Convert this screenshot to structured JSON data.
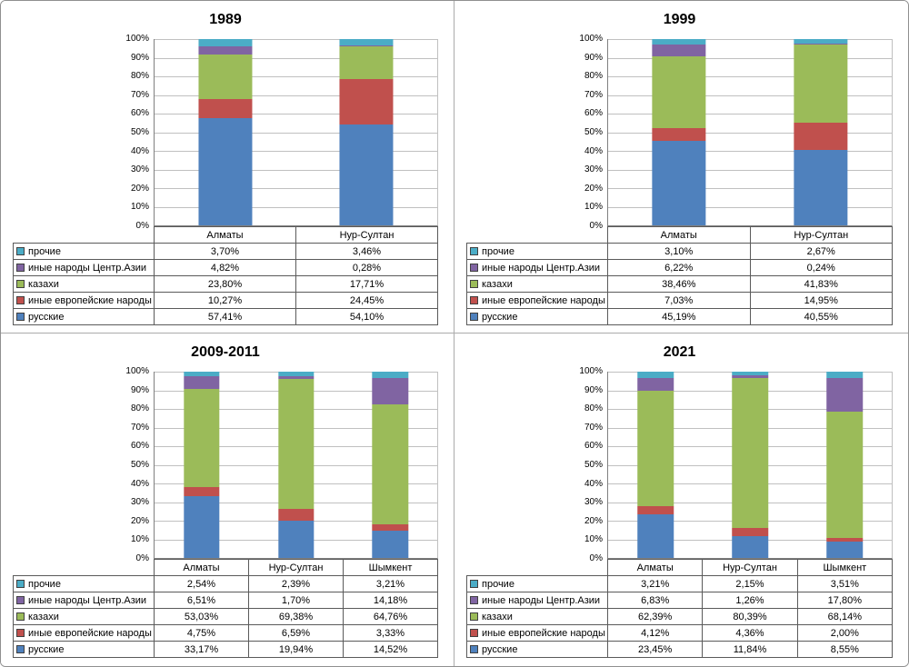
{
  "y_axis_ticks": [
    "100%",
    "90%",
    "80%",
    "70%",
    "60%",
    "50%",
    "40%",
    "30%",
    "20%",
    "10%",
    "0%"
  ],
  "palette": {
    "prochie": "#4BACC6",
    "central_asia": "#8064A2",
    "kazakhi": "#9BBB59",
    "european": "#C0504D",
    "russkie": "#4F81BD"
  },
  "chart_data": [
    {
      "type": "bar",
      "stacked": true,
      "percent": true,
      "grid": true,
      "legend_position": "table-left",
      "title": "1989",
      "categories": [
        "Алматы",
        "Нур-Султан"
      ],
      "ylim": [
        0,
        100
      ],
      "series": [
        {
          "name": "прочие",
          "color": "#4BACC6",
          "values": [
            3.7,
            3.46
          ],
          "labels": [
            "3,70%",
            "3,46%"
          ]
        },
        {
          "name": "иные народы Центр.Азии",
          "color": "#8064A2",
          "values": [
            4.82,
            0.28
          ],
          "labels": [
            "4,82%",
            "0,28%"
          ]
        },
        {
          "name": "казахи",
          "color": "#9BBB59",
          "values": [
            23.8,
            17.71
          ],
          "labels": [
            "23,80%",
            "17,71%"
          ]
        },
        {
          "name": "иные европейские народы",
          "color": "#C0504D",
          "values": [
            10.27,
            24.45
          ],
          "labels": [
            "10,27%",
            "24,45%"
          ]
        },
        {
          "name": "русские",
          "color": "#4F81BD",
          "values": [
            57.41,
            54.1
          ],
          "labels": [
            "57,41%",
            "54,10%"
          ]
        }
      ]
    },
    {
      "type": "bar",
      "stacked": true,
      "percent": true,
      "grid": true,
      "legend_position": "table-left",
      "title": "1999",
      "categories": [
        "Алматы",
        "Нур-Султан"
      ],
      "ylim": [
        0,
        100
      ],
      "series": [
        {
          "name": "прочие",
          "color": "#4BACC6",
          "values": [
            3.1,
            2.67
          ],
          "labels": [
            "3,10%",
            "2,67%"
          ]
        },
        {
          "name": "иные народы Центр.Азии",
          "color": "#8064A2",
          "values": [
            6.22,
            0.24
          ],
          "labels": [
            "6,22%",
            "0,24%"
          ]
        },
        {
          "name": "казахи",
          "color": "#9BBB59",
          "values": [
            38.46,
            41.83
          ],
          "labels": [
            "38,46%",
            "41,83%"
          ]
        },
        {
          "name": "иные европейские народы",
          "color": "#C0504D",
          "values": [
            7.03,
            14.95
          ],
          "labels": [
            "7,03%",
            "14,95%"
          ]
        },
        {
          "name": "русские",
          "color": "#4F81BD",
          "values": [
            45.19,
            40.55
          ],
          "labels": [
            "45,19%",
            "40,55%"
          ]
        }
      ]
    },
    {
      "type": "bar",
      "stacked": true,
      "percent": true,
      "grid": true,
      "legend_position": "table-left",
      "title": "2009-2011",
      "categories": [
        "Алматы",
        "Нур-Султан",
        "Шымкент"
      ],
      "ylim": [
        0,
        100
      ],
      "series": [
        {
          "name": "прочие",
          "color": "#4BACC6",
          "values": [
            2.54,
            2.39,
            3.21
          ],
          "labels": [
            "2,54%",
            "2,39%",
            "3,21%"
          ]
        },
        {
          "name": "иные народы Центр.Азии",
          "color": "#8064A2",
          "values": [
            6.51,
            1.7,
            14.18
          ],
          "labels": [
            "6,51%",
            "1,70%",
            "14,18%"
          ]
        },
        {
          "name": "казахи",
          "color": "#9BBB59",
          "values": [
            53.03,
            69.38,
            64.76
          ],
          "labels": [
            "53,03%",
            "69,38%",
            "64,76%"
          ]
        },
        {
          "name": "иные европейские народы",
          "color": "#C0504D",
          "values": [
            4.75,
            6.59,
            3.33
          ],
          "labels": [
            "4,75%",
            "6,59%",
            "3,33%"
          ]
        },
        {
          "name": "русские",
          "color": "#4F81BD",
          "values": [
            33.17,
            19.94,
            14.52
          ],
          "labels": [
            "33,17%",
            "19,94%",
            "14,52%"
          ]
        }
      ]
    },
    {
      "type": "bar",
      "stacked": true,
      "percent": true,
      "grid": true,
      "legend_position": "table-left",
      "title": "2021",
      "categories": [
        "Алматы",
        "Нур-Султан",
        "Шымкент"
      ],
      "ylim": [
        0,
        100
      ],
      "series": [
        {
          "name": "прочие",
          "color": "#4BACC6",
          "values": [
            3.21,
            2.15,
            3.51
          ],
          "labels": [
            "3,21%",
            "2,15%",
            "3,51%"
          ]
        },
        {
          "name": "иные народы Центр.Азии",
          "color": "#8064A2",
          "values": [
            6.83,
            1.26,
            17.8
          ],
          "labels": [
            "6,83%",
            "1,26%",
            "17,80%"
          ]
        },
        {
          "name": "казахи",
          "color": "#9BBB59",
          "values": [
            62.39,
            80.39,
            68.14
          ],
          "labels": [
            "62,39%",
            "80,39%",
            "68,14%"
          ]
        },
        {
          "name": "иные европейские народы",
          "color": "#C0504D",
          "values": [
            4.12,
            4.36,
            2.0
          ],
          "labels": [
            "4,12%",
            "4,36%",
            "2,00%"
          ]
        },
        {
          "name": "русские",
          "color": "#4F81BD",
          "values": [
            23.45,
            11.84,
            8.55
          ],
          "labels": [
            "23,45%",
            "11,84%",
            "8,55%"
          ]
        }
      ]
    }
  ]
}
